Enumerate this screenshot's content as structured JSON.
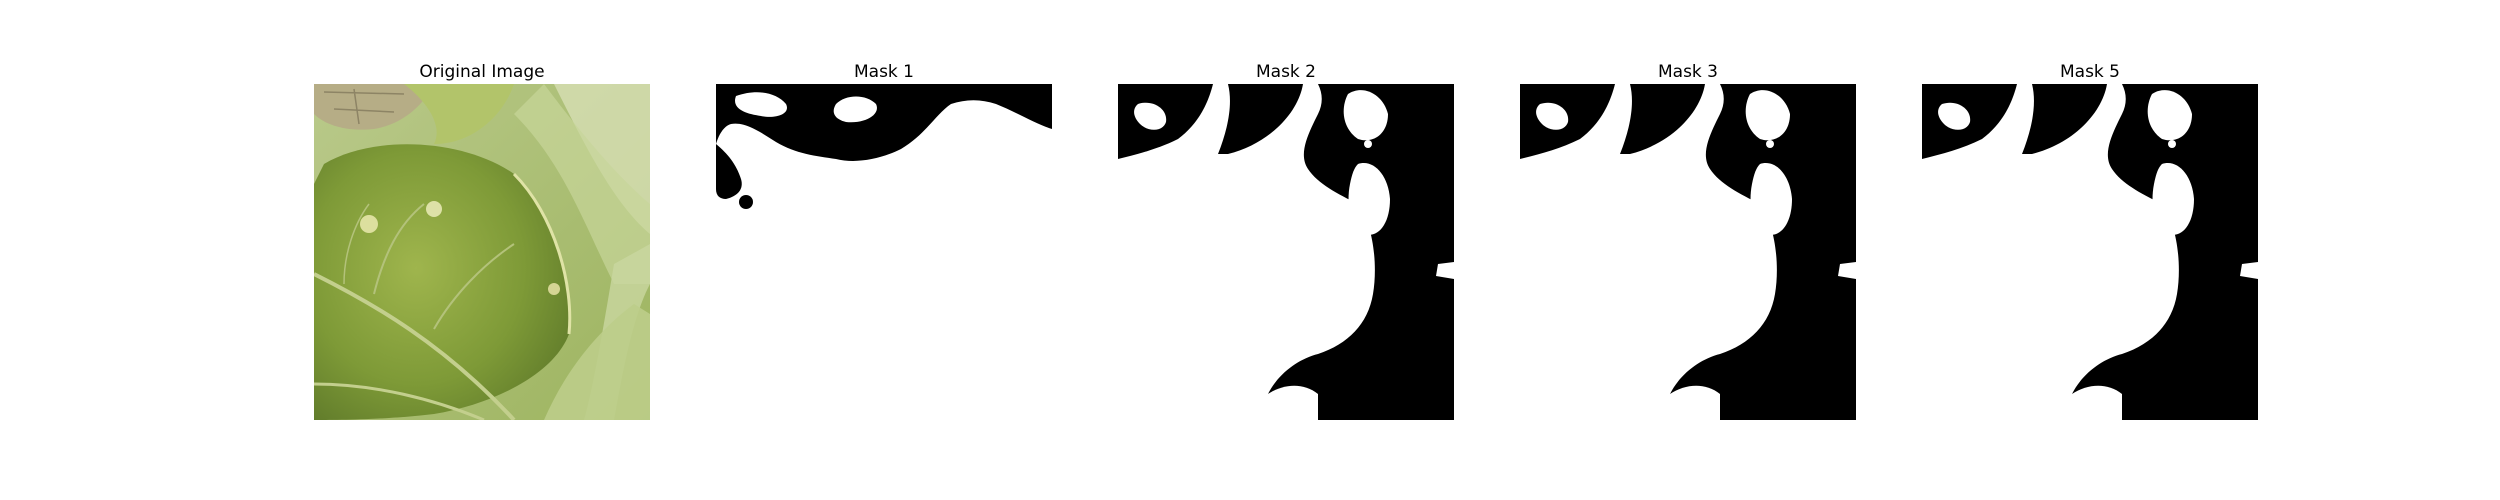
{
  "figure": {
    "panels": [
      {
        "title": "Original Image",
        "kind": "photo",
        "icon": "leaf-photo"
      },
      {
        "title": "Mask 1",
        "kind": "mask"
      },
      {
        "title": "Mask 2",
        "kind": "mask"
      },
      {
        "title": "Mask 3",
        "kind": "mask"
      },
      {
        "title": "Mask 5",
        "kind": "mask"
      }
    ]
  },
  "colors": {
    "mask_foreground": "#ffffff",
    "mask_background": "#000000",
    "leaf_green": "#8aa33f",
    "leaf_dark": "#5f7a2a",
    "stem_light": "#c8d59a",
    "dry_leaf": "#b6ad86"
  }
}
